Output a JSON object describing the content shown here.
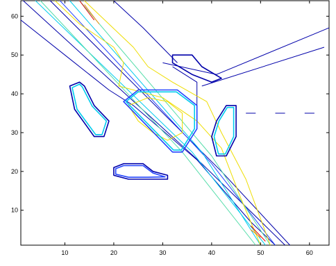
{
  "chart_data": {
    "type": "contour",
    "title": "",
    "xlabel": "",
    "ylabel": "",
    "xlim": [
      1,
      64
    ],
    "ylim": [
      1,
      64
    ],
    "xticks": [
      10,
      20,
      30,
      40,
      50,
      60
    ],
    "yticks": [
      10,
      20,
      30,
      40,
      50,
      60
    ],
    "grid": false,
    "colors": {
      "level_1": "#0000aa",
      "level_2": "#2244ff",
      "level_3": "#00ccee",
      "level_4": "#55ddaa",
      "level_5": "#eedd00",
      "level_6": "#ff8800",
      "level_7": "#ee0000"
    },
    "contours": [
      {
        "level": 1,
        "points": [
          [
            1.5,
            64
          ],
          [
            38,
            22
          ],
          [
            55,
            1
          ]
        ]
      },
      {
        "level": 1,
        "points": [
          [
            7,
            64
          ],
          [
            42,
            20
          ],
          [
            56,
            1
          ]
        ]
      },
      {
        "level": 1,
        "points": [
          [
            1,
            59
          ],
          [
            11,
            49
          ],
          [
            19,
            41
          ],
          [
            24,
            37
          ],
          [
            37,
            23
          ],
          [
            48,
            7
          ],
          [
            53,
            1
          ]
        ]
      },
      {
        "level": 1,
        "points": [
          [
            30,
            48
          ],
          [
            41,
            45
          ],
          [
            64,
            57
          ]
        ]
      },
      {
        "level": 1,
        "points": [
          [
            32,
            47
          ],
          [
            37,
            43
          ],
          [
            37,
            35
          ]
        ]
      },
      {
        "level": 1,
        "points": [
          [
            38,
            42
          ],
          [
            63,
            52
          ]
        ]
      },
      {
        "level": 1,
        "points": [
          [
            20,
            64
          ],
          [
            26,
            57
          ],
          [
            33,
            48
          ]
        ]
      },
      {
        "level": 2,
        "points": [
          [
            9,
            64
          ],
          [
            40,
            22
          ],
          [
            53,
            1
          ]
        ]
      },
      {
        "level": 3,
        "points": [
          [
            4,
            64
          ],
          [
            36,
            25
          ],
          [
            51,
            1
          ]
        ]
      },
      {
        "level": 3,
        "points": [
          [
            11,
            64
          ],
          [
            38,
            25
          ],
          [
            50,
            1
          ]
        ]
      },
      {
        "level": 4,
        "points": [
          [
            5,
            64
          ],
          [
            34,
            25
          ],
          [
            49,
            1
          ]
        ]
      },
      {
        "level": 4,
        "points": [
          [
            13,
            64
          ],
          [
            40,
            24
          ],
          [
            52,
            1
          ]
        ]
      },
      {
        "level": 5,
        "points": [
          [
            8,
            64
          ],
          [
            13,
            58
          ],
          [
            20,
            52
          ],
          [
            22,
            48
          ],
          [
            21,
            42
          ],
          [
            30,
            39
          ],
          [
            37,
            33
          ],
          [
            42,
            26
          ],
          [
            46,
            13
          ],
          [
            50,
            1
          ]
        ]
      },
      {
        "level": 5,
        "points": [
          [
            14,
            64
          ],
          [
            24,
            52
          ],
          [
            27,
            47
          ],
          [
            32,
            43
          ],
          [
            39,
            38
          ],
          [
            42,
            30
          ],
          [
            47,
            18
          ],
          [
            52,
            1
          ]
        ]
      },
      {
        "level": 5,
        "points": [
          [
            23,
            37
          ],
          [
            27,
            39
          ],
          [
            31,
            38
          ],
          [
            34,
            35
          ],
          [
            34,
            30
          ],
          [
            31,
            28
          ],
          [
            28,
            30
          ],
          [
            25,
            33
          ],
          [
            23,
            37
          ]
        ]
      },
      {
        "level": 6,
        "points": [
          [
            14,
            63
          ],
          [
            17,
            58
          ]
        ]
      },
      {
        "level": 6,
        "points": [
          [
            48,
            5
          ],
          [
            50,
            3
          ]
        ]
      },
      {
        "level": 7,
        "points": [
          [
            13,
            64
          ],
          [
            16,
            59
          ]
        ]
      },
      {
        "level": 7,
        "points": [
          [
            48,
            6
          ],
          [
            51,
            2
          ]
        ]
      },
      {
        "level": 2,
        "closed": true,
        "points": [
          [
            22,
            38
          ],
          [
            25,
            41
          ],
          [
            33,
            41
          ],
          [
            37,
            37
          ],
          [
            37,
            31
          ],
          [
            34,
            25
          ],
          [
            32,
            25
          ],
          [
            22,
            38
          ]
        ]
      },
      {
        "level": 3,
        "closed": true,
        "points": [
          [
            22.5,
            38
          ],
          [
            25,
            40.5
          ],
          [
            32.8,
            40.5
          ],
          [
            36.5,
            37
          ],
          [
            36.5,
            31
          ],
          [
            33.8,
            25.5
          ],
          [
            32.2,
            25.5
          ],
          [
            22.5,
            38
          ]
        ]
      },
      {
        "level": 1,
        "closed": true,
        "points": [
          [
            11,
            42
          ],
          [
            13,
            43
          ],
          [
            14,
            42
          ],
          [
            16,
            37
          ],
          [
            19,
            33
          ],
          [
            18,
            29
          ],
          [
            16,
            29
          ],
          [
            12,
            36
          ],
          [
            11,
            42
          ]
        ]
      },
      {
        "level": 3,
        "closed": true,
        "points": [
          [
            11.5,
            41.6
          ],
          [
            13,
            42.5
          ],
          [
            13.6,
            41.7
          ],
          [
            15.6,
            36.8
          ],
          [
            18.5,
            33
          ],
          [
            17.6,
            29.5
          ],
          [
            16.3,
            29.5
          ],
          [
            12.5,
            36
          ],
          [
            11.5,
            41.6
          ]
        ]
      },
      {
        "level": 1,
        "closed": true,
        "points": [
          [
            41,
            33
          ],
          [
            43,
            37
          ],
          [
            45,
            37
          ],
          [
            45,
            29
          ],
          [
            43,
            24
          ],
          [
            41,
            24
          ],
          [
            40,
            29
          ],
          [
            41,
            33
          ]
        ]
      },
      {
        "level": 3,
        "closed": true,
        "points": [
          [
            41.5,
            33
          ],
          [
            43.2,
            36.5
          ],
          [
            44.5,
            36.5
          ],
          [
            44.5,
            29
          ],
          [
            42.8,
            24.5
          ],
          [
            41.4,
            24.5
          ],
          [
            40.5,
            29
          ],
          [
            41.5,
            33
          ]
        ]
      },
      {
        "level": 1,
        "closed": true,
        "points": [
          [
            20,
            21
          ],
          [
            22,
            22
          ],
          [
            26,
            22
          ],
          [
            28,
            20
          ],
          [
            31,
            19
          ],
          [
            31,
            18
          ],
          [
            27,
            18
          ],
          [
            23,
            18
          ],
          [
            20,
            19
          ],
          [
            20,
            21
          ]
        ]
      },
      {
        "level": 2,
        "closed": true,
        "points": [
          [
            20.4,
            20.7
          ],
          [
            22,
            21.5
          ],
          [
            26,
            21.5
          ],
          [
            28,
            19.6
          ],
          [
            30.5,
            18.6
          ],
          [
            27,
            18.5
          ],
          [
            23,
            18.5
          ],
          [
            20.4,
            19.3
          ],
          [
            20.4,
            20.7
          ]
        ]
      },
      {
        "level": 1,
        "closed": true,
        "points": [
          [
            32,
            50
          ],
          [
            36,
            50
          ],
          [
            38,
            47
          ],
          [
            42,
            44
          ],
          [
            40,
            43
          ],
          [
            36,
            45
          ],
          [
            32,
            48
          ],
          [
            32,
            50
          ]
        ]
      },
      {
        "level": 1,
        "points": [
          [
            47,
            35
          ],
          [
            49,
            35
          ]
        ]
      },
      {
        "level": 1,
        "points": [
          [
            53,
            35
          ],
          [
            55,
            35
          ]
        ]
      },
      {
        "level": 1,
        "points": [
          [
            59,
            35
          ],
          [
            61,
            35
          ]
        ]
      }
    ]
  }
}
